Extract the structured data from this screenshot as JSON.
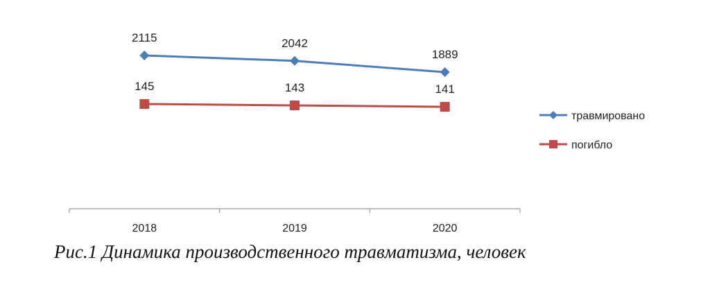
{
  "caption": "Рис.1 Динамика производственного травматизма, человек",
  "chart_data": {
    "type": "line",
    "categories": [
      "2018",
      "2019",
      "2020"
    ],
    "series": [
      {
        "name": "травмировано",
        "values": [
          2115,
          2042,
          1889
        ],
        "color": "#4a7ebb",
        "marker": "diamond"
      },
      {
        "name": "погибло",
        "values": [
          145,
          143,
          141
        ],
        "color": "#be4b48",
        "marker": "square"
      }
    ],
    "title": "",
    "xlabel": "",
    "ylabel": "",
    "grid": false,
    "legend": "right",
    "data_labels": true
  }
}
